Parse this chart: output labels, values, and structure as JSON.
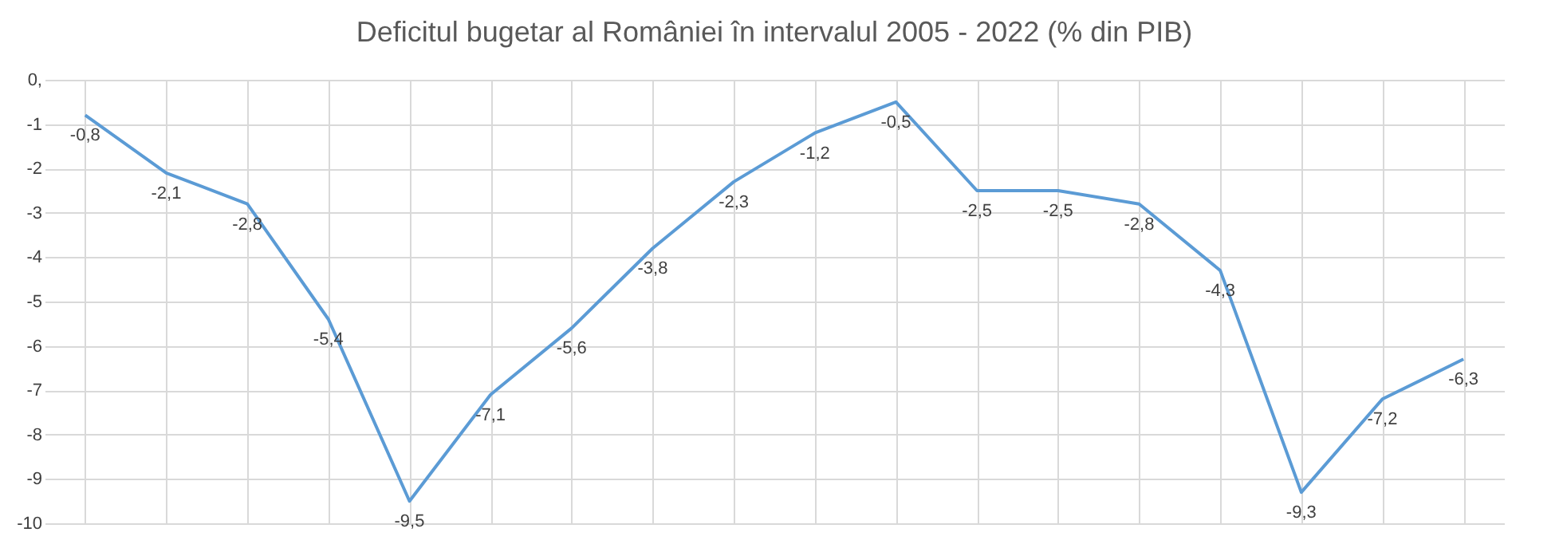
{
  "chart_data": {
    "type": "line",
    "title": "Deficitul bugetar al României în intervalul 2005 - 2022 (% din PIB)",
    "categories": [
      null,
      null,
      null,
      null,
      null,
      null,
      null,
      null,
      null,
      null,
      null,
      null,
      null,
      null,
      null,
      null,
      null,
      null
    ],
    "series": [
      {
        "color": "#5b9bd5",
        "values": [
          -0.8,
          -2.1,
          -2.8,
          -5.4,
          -9.5,
          -7.1,
          -5.6,
          -3.8,
          -2.3,
          -1.2,
          -0.5,
          -2.5,
          -2.5,
          -2.8,
          -4.3,
          -9.3,
          -7.2,
          -6.3
        ],
        "value_labels": [
          "-0,8",
          "-2,1",
          "-2,8",
          "-5,4",
          "-9,5",
          "-7,1",
          "-5,6",
          "-3,8",
          "-2,3",
          "-1,2",
          "-0,5",
          "-2,5",
          "-2,5",
          "-2,8",
          "-4,3",
          "-9,3",
          "-7,2",
          "-6,3"
        ]
      }
    ],
    "ylim": [
      -10,
      0
    ],
    "yticks": [
      {
        "value": 0,
        "label": "0,"
      },
      -1,
      -2,
      -3,
      -4,
      -5,
      -6,
      -7,
      -8,
      -9,
      -10
    ],
    "grid": true,
    "tick_labels": "y",
    "marker": "none",
    "line_style": "solid"
  }
}
